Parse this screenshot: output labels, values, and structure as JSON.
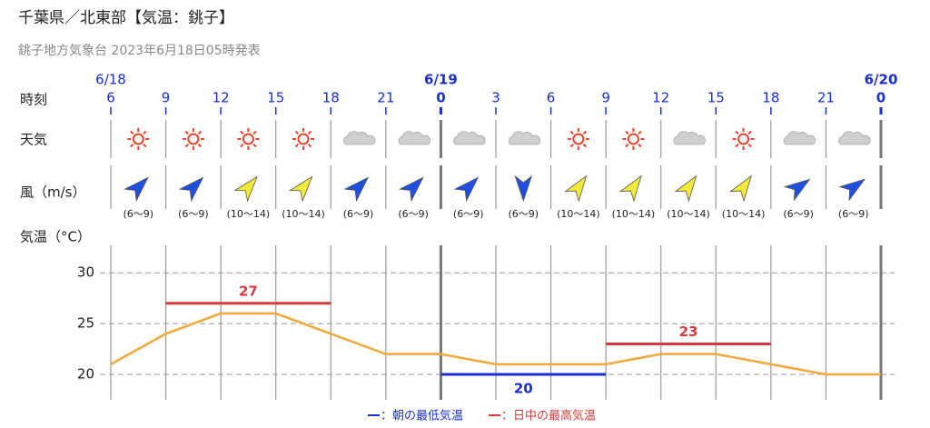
{
  "chart_data": {
    "type": "line",
    "title": "千葉県／北東部【気温：銚子】",
    "subtitle": "銚子地方気象台 2023年6月18日05時発表",
    "row_labels": {
      "time": "時刻",
      "weather": "天気",
      "wind": "風（m/s）",
      "temperature": "気温（°C）"
    },
    "dates": [
      "6/18",
      null,
      null,
      null,
      null,
      null,
      "6/19",
      null,
      null,
      null,
      null,
      null,
      null,
      null,
      "6/20"
    ],
    "categories": [
      "6",
      "9",
      "12",
      "15",
      "18",
      "21",
      "0",
      "3",
      "6",
      "9",
      "12",
      "15",
      "18",
      "21",
      "0"
    ],
    "weather": [
      "sunny",
      "sunny",
      "sunny",
      "sunny",
      "cloudy",
      "cloudy",
      "cloudy",
      "cloudy",
      "sunny",
      "sunny",
      "cloudy",
      "sunny",
      "cloudy",
      "cloudy"
    ],
    "wind": [
      {
        "label": "(6〜9)",
        "direction": 45,
        "color": "#1f4fe0"
      },
      {
        "label": "(6〜9)",
        "direction": 45,
        "color": "#1f4fe0"
      },
      {
        "label": "(10〜14)",
        "direction": 40,
        "color": "#f2ea3a"
      },
      {
        "label": "(10〜14)",
        "direction": 40,
        "color": "#f2ea3a"
      },
      {
        "label": "(6〜9)",
        "direction": 45,
        "color": "#1f4fe0"
      },
      {
        "label": "(6〜9)",
        "direction": 45,
        "color": "#1f4fe0"
      },
      {
        "label": "(6〜9)",
        "direction": 45,
        "color": "#1f4fe0"
      },
      {
        "label": "(6〜9)",
        "direction": 180,
        "color": "#1f4fe0"
      },
      {
        "label": "(10〜14)",
        "direction": 35,
        "color": "#f2ea3a"
      },
      {
        "label": "(10〜14)",
        "direction": 35,
        "color": "#f2ea3a"
      },
      {
        "label": "(10〜14)",
        "direction": 35,
        "color": "#f2ea3a"
      },
      {
        "label": "(10〜14)",
        "direction": 35,
        "color": "#f2ea3a"
      },
      {
        "label": "(6〜9)",
        "direction": 55,
        "color": "#1f4fe0"
      },
      {
        "label": "(6〜9)",
        "direction": 55,
        "color": "#1f4fe0"
      }
    ],
    "values": [
      21,
      24,
      26,
      26,
      24,
      22,
      22,
      21,
      21,
      21,
      22,
      22,
      21,
      20,
      20
    ],
    "color": "#f0a93a",
    "ylim": [
      17.5,
      32.7
    ],
    "yticks": [
      20,
      25,
      30
    ],
    "grid": true,
    "legend": [
      {
        "label": "：朝の最低気温",
        "color": "#1a2fd0"
      },
      {
        "label": "：日中の最高気温",
        "color": "#d63a3a"
      }
    ],
    "extremes": [
      {
        "value": 27,
        "from": 1,
        "to": 4,
        "kind": 1
      },
      {
        "value": 20,
        "from": 6,
        "to": 9,
        "kind": 0
      },
      {
        "value": 23,
        "from": 9,
        "to": 12,
        "kind": 1
      }
    ]
  }
}
